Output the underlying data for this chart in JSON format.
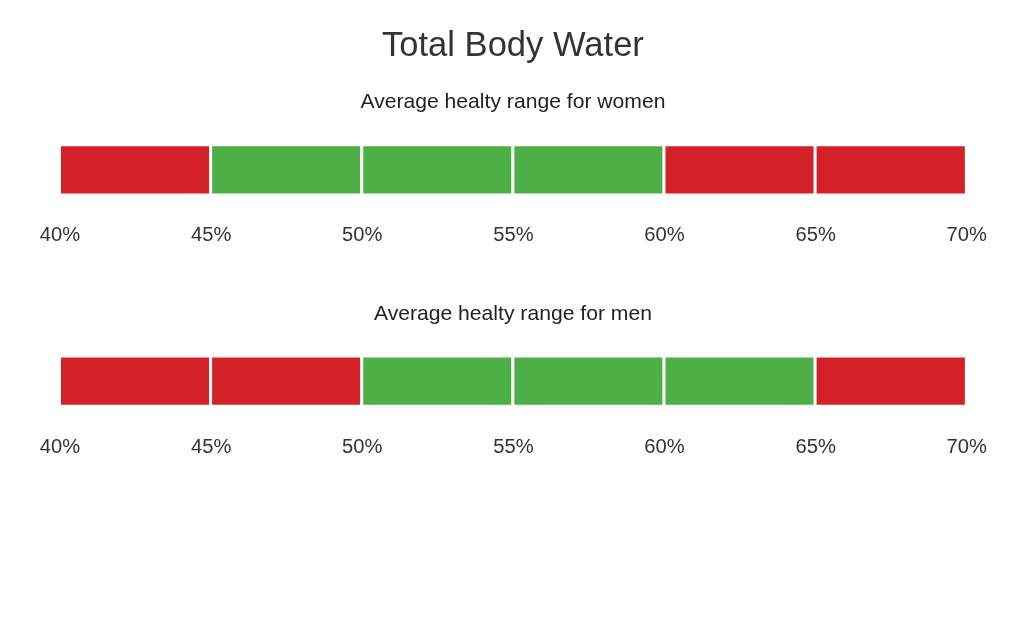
{
  "chart_data": [
    {
      "type": "bar",
      "title": "Total Body Water",
      "subtitle": "Average healty range for women",
      "orientation": "horizontal",
      "categories": [
        null
      ],
      "series": [
        {
          "color": "#d42027",
          "values": [
            5
          ],
          "base": [
            40
          ]
        },
        {
          "color": "#4db046",
          "values": [
            5
          ],
          "base": [
            45
          ]
        },
        {
          "color": "#4db046",
          "values": [
            5
          ],
          "base": [
            50
          ]
        },
        {
          "color": "#4db046",
          "values": [
            5
          ],
          "base": [
            55
          ]
        },
        {
          "color": "#d42027",
          "values": [
            5
          ],
          "base": [
            60
          ]
        },
        {
          "color": "#d42027",
          "values": [
            5
          ],
          "base": [
            65
          ]
        }
      ],
      "xlim": [
        40,
        70
      ],
      "xticks": [
        {
          "value": 40,
          "label": "40%"
        },
        {
          "value": 45,
          "label": "45%"
        },
        {
          "value": 50,
          "label": "50%"
        },
        {
          "value": 55,
          "label": "55%"
        },
        {
          "value": 60,
          "label": "60%"
        },
        {
          "value": 65,
          "label": "65%"
        },
        {
          "value": 70,
          "label": "70%"
        }
      ],
      "grid": false,
      "legend": false
    },
    {
      "type": "bar",
      "title": "Average healty range for men",
      "orientation": "horizontal",
      "categories": [
        null
      ],
      "series": [
        {
          "color": "#d42027",
          "values": [
            5
          ],
          "base": [
            40
          ]
        },
        {
          "color": "#d42027",
          "values": [
            5
          ],
          "base": [
            45
          ]
        },
        {
          "color": "#4db046",
          "values": [
            5
          ],
          "base": [
            50
          ]
        },
        {
          "color": "#4db046",
          "values": [
            5
          ],
          "base": [
            55
          ]
        },
        {
          "color": "#4db046",
          "values": [
            5
          ],
          "base": [
            60
          ]
        },
        {
          "color": "#d42027",
          "values": [
            5
          ],
          "base": [
            65
          ]
        }
      ],
      "xlim": [
        40,
        70
      ],
      "xticks": [
        {
          "value": 40,
          "label": "40%"
        },
        {
          "value": 45,
          "label": "45%"
        },
        {
          "value": 50,
          "label": "50%"
        },
        {
          "value": 55,
          "label": "55%"
        },
        {
          "value": 60,
          "label": "60%"
        },
        {
          "value": 65,
          "label": "65%"
        },
        {
          "value": 70,
          "label": "70%"
        }
      ],
      "grid": false,
      "legend": false
    }
  ]
}
